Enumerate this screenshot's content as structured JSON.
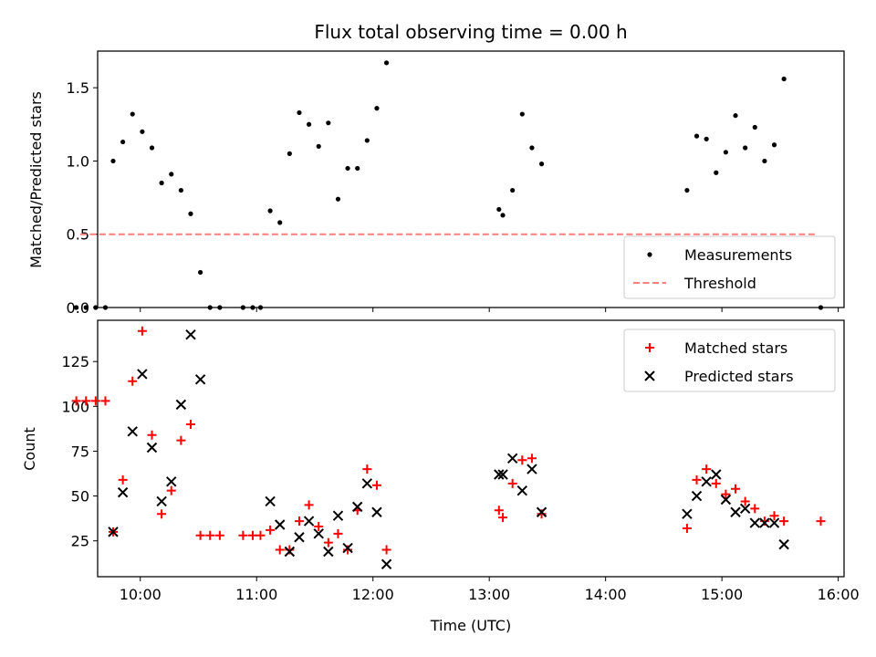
{
  "chart_data": [
    {
      "type": "scatter",
      "title": "Flux total observing time = 0.00 h",
      "xlabel": "",
      "ylabel": "Matched/Predicted stars",
      "ylim": [
        0,
        1.75
      ],
      "yticks": [
        0.0,
        0.5,
        1.0,
        1.5
      ],
      "ytick_labels": [
        "0.0",
        "0.5",
        "1.0",
        "1.5"
      ],
      "xlim": [
        "09:38",
        "16:03"
      ],
      "legend": "lower-right",
      "series": [
        {
          "name": "Measurements",
          "color": "#000000",
          "marker": "dot",
          "points": [
            [
              "09:27",
              0
            ],
            [
              "09:32",
              0
            ],
            [
              "09:37",
              0
            ],
            [
              "09:42",
              0
            ],
            [
              "09:46",
              1.0
            ],
            [
              "09:51",
              1.13
            ],
            [
              "09:56",
              1.32
            ],
            [
              "10:01",
              1.2
            ],
            [
              "10:06",
              1.09
            ],
            [
              "10:11",
              0.85
            ],
            [
              "10:16",
              0.91
            ],
            [
              "10:21",
              0.8
            ],
            [
              "10:26",
              0.64
            ],
            [
              "10:31",
              0.24
            ],
            [
              "10:36",
              0
            ],
            [
              "10:41",
              0
            ],
            [
              "10:53",
              0
            ],
            [
              "10:58",
              0
            ],
            [
              "11:02",
              0
            ],
            [
              "11:07",
              0.66
            ],
            [
              "11:12",
              0.58
            ],
            [
              "11:17",
              1.05
            ],
            [
              "11:22",
              1.33
            ],
            [
              "11:27",
              1.25
            ],
            [
              "11:32",
              1.1
            ],
            [
              "11:37",
              1.26
            ],
            [
              "11:42",
              0.74
            ],
            [
              "11:47",
              0.95
            ],
            [
              "11:52",
              0.95
            ],
            [
              "11:57",
              1.14
            ],
            [
              "12:02",
              1.36
            ],
            [
              "12:07",
              1.67
            ],
            [
              "13:05",
              0.67
            ],
            [
              "13:07",
              0.63
            ],
            [
              "13:12",
              0.8
            ],
            [
              "13:17",
              1.32
            ],
            [
              "13:22",
              1.09
            ],
            [
              "13:27",
              0.98
            ],
            [
              "14:42",
              0.8
            ],
            [
              "14:47",
              1.17
            ],
            [
              "14:52",
              1.15
            ],
            [
              "14:57",
              0.92
            ],
            [
              "15:02",
              1.06
            ],
            [
              "15:07",
              1.31
            ],
            [
              "15:12",
              1.09
            ],
            [
              "15:17",
              1.23
            ],
            [
              "15:22",
              1.0
            ],
            [
              "15:27",
              1.11
            ],
            [
              "15:32",
              1.56
            ],
            [
              "15:51",
              0
            ]
          ]
        },
        {
          "name": "Threshold",
          "color": "#ff7f7f",
          "style": "dashed",
          "points": [
            [
              "09:29",
              0.5
            ],
            [
              "15:49",
              0.5
            ]
          ]
        }
      ]
    },
    {
      "type": "scatter",
      "title": "",
      "xlabel": "Time (UTC)",
      "ylabel": "Count",
      "ylim": [
        5,
        148
      ],
      "yticks": [
        25,
        50,
        75,
        100,
        125
      ],
      "ytick_labels": [
        "25",
        "50",
        "75",
        "100",
        "125"
      ],
      "xticks": [
        "10:00",
        "11:00",
        "12:00",
        "13:00",
        "14:00",
        "15:00",
        "16:00"
      ],
      "xtick_labels": [
        "10:00",
        "11:00",
        "12:00",
        "13:00",
        "14:00",
        "15:00",
        "16:00"
      ],
      "xlim": [
        "09:38",
        "16:03"
      ],
      "legend": "top-right",
      "series": [
        {
          "name": "Matched stars",
          "color": "#ff0000",
          "marker": "plus",
          "points": [
            [
              "09:27",
              103
            ],
            [
              "09:32",
              103
            ],
            [
              "09:37",
              103
            ],
            [
              "09:42",
              103
            ],
            [
              "09:46",
              30
            ],
            [
              "09:51",
              59
            ],
            [
              "09:56",
              114
            ],
            [
              "10:01",
              142
            ],
            [
              "10:06",
              84
            ],
            [
              "10:11",
              40
            ],
            [
              "10:16",
              53
            ],
            [
              "10:21",
              81
            ],
            [
              "10:26",
              90
            ],
            [
              "10:31",
              28
            ],
            [
              "10:36",
              28
            ],
            [
              "10:41",
              28
            ],
            [
              "10:53",
              28
            ],
            [
              "10:58",
              28
            ],
            [
              "11:02",
              28
            ],
            [
              "11:07",
              31
            ],
            [
              "11:12",
              20
            ],
            [
              "11:17",
              20
            ],
            [
              "11:22",
              36
            ],
            [
              "11:27",
              45
            ],
            [
              "11:32",
              33
            ],
            [
              "11:37",
              24
            ],
            [
              "11:42",
              29
            ],
            [
              "11:47",
              20
            ],
            [
              "11:52",
              42
            ],
            [
              "11:57",
              65
            ],
            [
              "12:02",
              56
            ],
            [
              "12:07",
              20
            ],
            [
              "13:05",
              42
            ],
            [
              "13:07",
              38
            ],
            [
              "13:12",
              57
            ],
            [
              "13:17",
              70
            ],
            [
              "13:22",
              71
            ],
            [
              "13:27",
              40
            ],
            [
              "14:42",
              32
            ],
            [
              "14:47",
              59
            ],
            [
              "14:52",
              65
            ],
            [
              "14:57",
              57
            ],
            [
              "15:02",
              51
            ],
            [
              "15:07",
              54
            ],
            [
              "15:12",
              47
            ],
            [
              "15:17",
              43
            ],
            [
              "15:22",
              36
            ],
            [
              "15:27",
              39
            ],
            [
              "15:32",
              36
            ],
            [
              "15:51",
              36
            ]
          ]
        },
        {
          "name": "Predicted stars",
          "color": "#000000",
          "marker": "x",
          "points": [
            [
              "09:46",
              30
            ],
            [
              "09:51",
              52
            ],
            [
              "09:56",
              86
            ],
            [
              "10:01",
              118
            ],
            [
              "10:06",
              77
            ],
            [
              "10:11",
              47
            ],
            [
              "10:16",
              58
            ],
            [
              "10:21",
              101
            ],
            [
              "10:26",
              140
            ],
            [
              "10:31",
              115
            ],
            [
              "11:07",
              47
            ],
            [
              "11:12",
              34
            ],
            [
              "11:17",
              19
            ],
            [
              "11:22",
              27
            ],
            [
              "11:27",
              36
            ],
            [
              "11:32",
              29
            ],
            [
              "11:37",
              19
            ],
            [
              "11:42",
              39
            ],
            [
              "11:47",
              21
            ],
            [
              "11:52",
              44
            ],
            [
              "11:57",
              57
            ],
            [
              "12:02",
              41
            ],
            [
              "12:07",
              12
            ],
            [
              "13:05",
              62
            ],
            [
              "13:07",
              62
            ],
            [
              "13:12",
              71
            ],
            [
              "13:17",
              53
            ],
            [
              "13:22",
              65
            ],
            [
              "13:27",
              41
            ],
            [
              "14:42",
              40
            ],
            [
              "14:47",
              50
            ],
            [
              "14:52",
              58
            ],
            [
              "14:57",
              62
            ],
            [
              "15:02",
              48
            ],
            [
              "15:07",
              41
            ],
            [
              "15:12",
              43
            ],
            [
              "15:17",
              35
            ],
            [
              "15:22",
              35
            ],
            [
              "15:27",
              35
            ],
            [
              "15:32",
              23
            ]
          ]
        }
      ]
    }
  ]
}
